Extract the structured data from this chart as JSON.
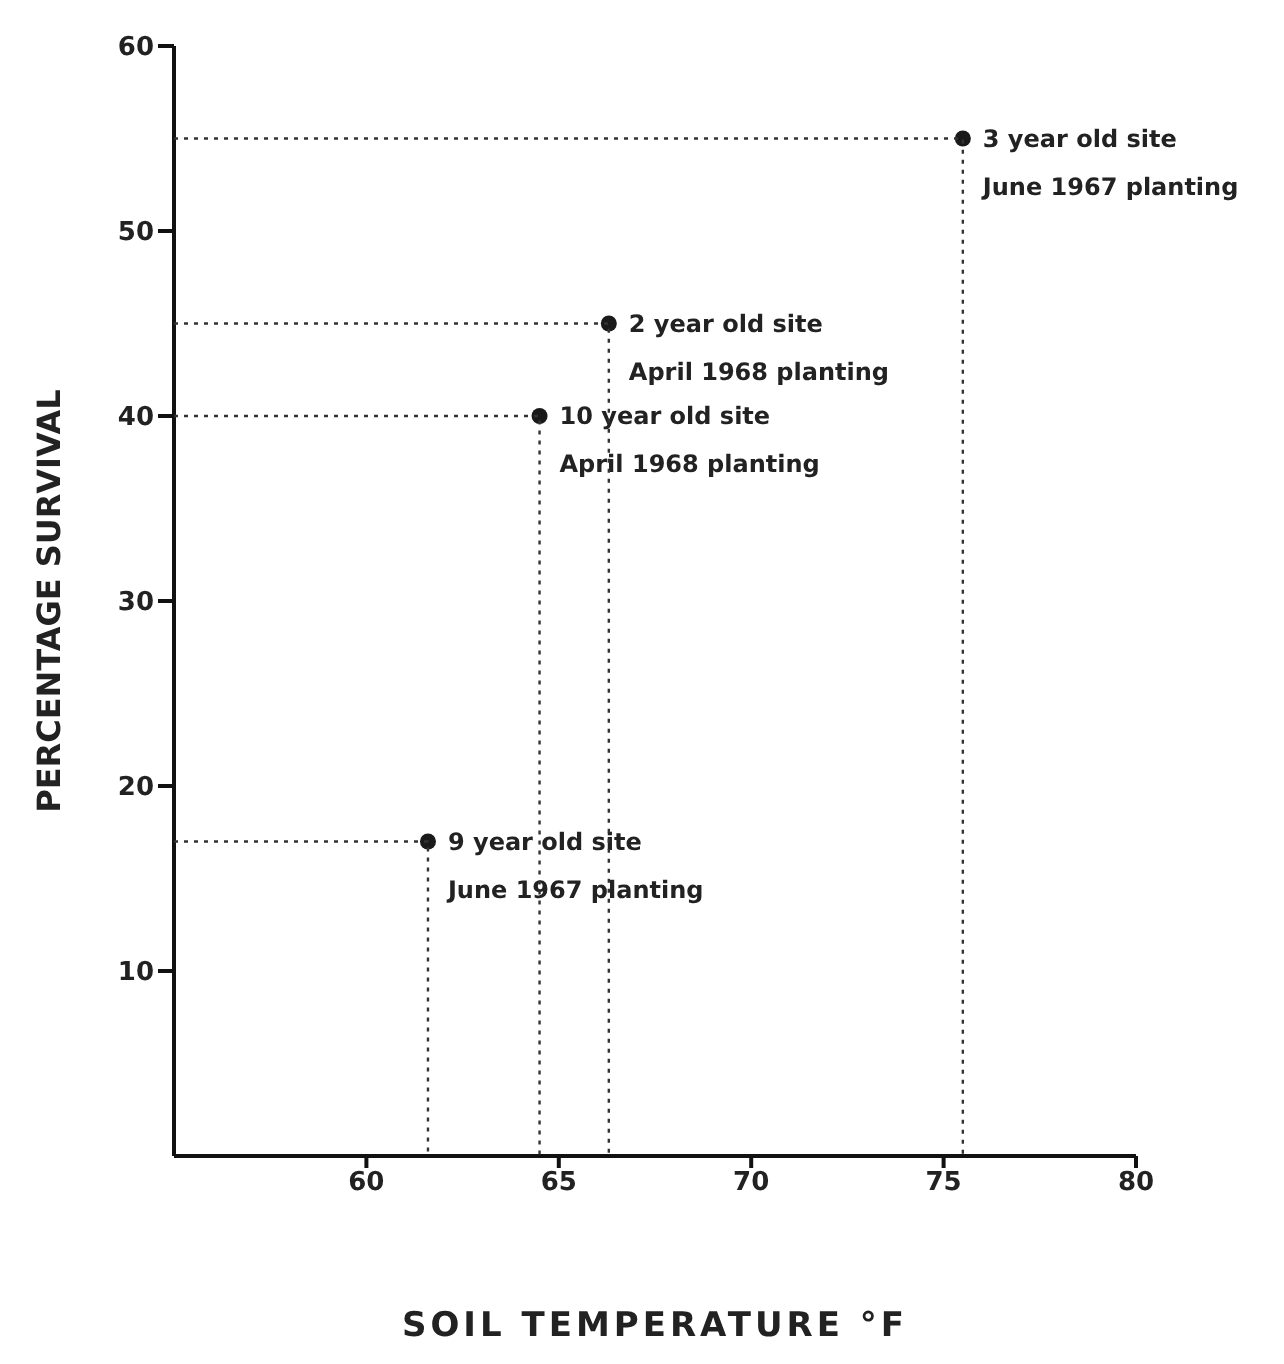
{
  "chart_data": {
    "type": "scatter",
    "xlabel": "SOIL  TEMPERATURE °F",
    "ylabel": "PERCENTAGE  SURVIVAL",
    "series": [
      {
        "x": [
          75.5,
          66.3,
          64.5,
          61.6
        ],
        "values": [
          55,
          45,
          40,
          17
        ],
        "color": "#1a1a1a",
        "marker": "circle"
      },
      {
        "type": "line",
        "x": [
          55,
          75.5,
          75.5
        ],
        "values": [
          55,
          55,
          0
        ],
        "color": "#333333",
        "line_style": "dotted",
        "marker": "none"
      },
      {
        "type": "line",
        "x": [
          55,
          66.3,
          66.3
        ],
        "values": [
          45,
          45,
          0
        ],
        "color": "#333333",
        "line_style": "dotted",
        "marker": "none"
      },
      {
        "type": "line",
        "x": [
          55,
          64.5,
          64.5
        ],
        "values": [
          40,
          40,
          0
        ],
        "color": "#333333",
        "line_style": "dotted",
        "marker": "none"
      },
      {
        "type": "line",
        "x": [
          55,
          61.6,
          61.6
        ],
        "values": [
          17,
          17,
          0
        ],
        "color": "#333333",
        "line_style": "dotted",
        "marker": "none"
      }
    ],
    "xlim": [
      55,
      80
    ],
    "xticks": [
      60,
      65,
      70,
      75,
      80
    ],
    "ylim": [
      0,
      60
    ],
    "yticks": [
      10,
      20,
      30,
      40,
      50,
      60
    ],
    "annotations": [
      {
        "text": "3 year old site\nJune 1967 planting",
        "x": 75.5,
        "y": 55
      },
      {
        "text": "2 year old site\nApril 1968 planting",
        "x": 66.3,
        "y": 45
      },
      {
        "text": "10 year old site\nApril 1968 planting",
        "x": 64.5,
        "y": 40
      },
      {
        "text": "9 year old site\nJune 1967 planting",
        "x": 61.6,
        "y": 17
      }
    ]
  }
}
